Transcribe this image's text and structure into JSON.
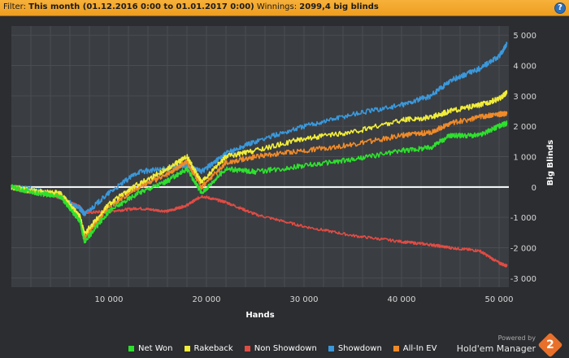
{
  "filter_bar": {
    "prefix": "Filter:",
    "filter_value": "This month (01.12.2016 0:00 to 01.01.2017 0:00)",
    "winnings_label": "Winnings:",
    "winnings_value": "2099,4 big blinds",
    "help_icon": "question-mark-icon"
  },
  "chart_data": {
    "type": "line",
    "xlabel": "Hands",
    "ylabel": "Big Blinds",
    "xlim": [
      0,
      51000
    ],
    "ylim": [
      -3300,
      5300
    ],
    "x_ticks": [
      10000,
      20000,
      30000,
      40000,
      50000
    ],
    "x_tick_labels": [
      "10 000",
      "20 000",
      "30 000",
      "40 000",
      "50 000"
    ],
    "y_ticks": [
      5000,
      4000,
      3000,
      2000,
      1000,
      0,
      -1000,
      -2000,
      -3000
    ],
    "y_tick_labels": [
      "5 000",
      "4 000",
      "3 000",
      "2 000",
      "1 000",
      "0",
      "-1 000",
      "-2 000",
      "-3 000"
    ],
    "grid": true,
    "zero_line": true,
    "legend_position": "bottom",
    "x": [
      0,
      2500,
      5000,
      7000,
      7500,
      10000,
      13000,
      16000,
      18000,
      19500,
      22000,
      25000,
      30000,
      35000,
      40000,
      43000,
      45000,
      48000,
      50000,
      50800
    ],
    "series": [
      {
        "name": "Net Won",
        "color": "#2ee02e",
        "values": [
          0,
          -200,
          -300,
          -1100,
          -1800,
          -800,
          -200,
          200,
          600,
          -200,
          600,
          500,
          700,
          900,
          1200,
          1300,
          1700,
          1700,
          2000,
          2100
        ]
      },
      {
        "name": "Rakeback",
        "color": "#f0ec3a",
        "values": [
          0,
          -150,
          -200,
          -950,
          -1550,
          -550,
          100,
          600,
          1000,
          150,
          1000,
          1200,
          1600,
          1800,
          2200,
          2300,
          2500,
          2700,
          2900,
          3100
        ]
      },
      {
        "name": "Non Showdown",
        "color": "#e04c44",
        "values": [
          0,
          -150,
          -350,
          -650,
          -850,
          -800,
          -700,
          -800,
          -600,
          -300,
          -500,
          -900,
          -1300,
          -1600,
          -1800,
          -1900,
          -2000,
          -2100,
          -2500,
          -2600
        ]
      },
      {
        "name": "Showdown",
        "color": "#3a98db",
        "values": [
          0,
          -100,
          -300,
          -700,
          -900,
          -200,
          500,
          600,
          700,
          500,
          1100,
          1500,
          2000,
          2400,
          2700,
          3000,
          3500,
          3900,
          4300,
          4700
        ]
      },
      {
        "name": "All-In EV",
        "color": "#f08a28",
        "values": [
          0,
          -180,
          -250,
          -1000,
          -1650,
          -650,
          0,
          400,
          850,
          0,
          800,
          1000,
          1200,
          1400,
          1700,
          1800,
          2100,
          2300,
          2400,
          2400
        ]
      }
    ]
  },
  "branding": {
    "powered_by": "Powered by",
    "product": "Hold'em Manager",
    "logo_text": "2"
  }
}
